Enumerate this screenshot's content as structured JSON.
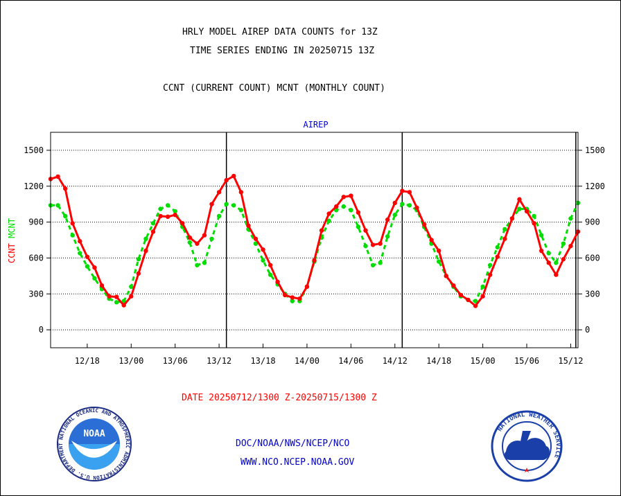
{
  "header": {
    "title_line1": "HRLY MODEL AIREP DATA COUNTS for 13Z",
    "title_line2": "TIME SERIES ENDING IN 20250715 13Z",
    "subtitle": "CCNT (CURRENT COUNT) MCNT (MONTHLY COUNT)"
  },
  "footer": {
    "date_range": "DATE 20250712/1300 Z-20250715/1300 Z",
    "links": [
      "DOC/NOAA/NWS/NCEP/NCO",
      "WWW.NCO.NCEP.NOAA.GOV"
    ]
  },
  "logos": {
    "left": {
      "icon": "noaa-logo-icon",
      "text": "NOAA",
      "ring_text": "NATIONAL OCEANIC AND ATMOSPHERIC ADMINISTRATION  U.S. DEPARTMENT OF COMMERCE"
    },
    "right": {
      "icon": "nws-logo-icon",
      "ring_text": "NATIONAL WEATHER SERVICE"
    }
  },
  "colors": {
    "ccnt": "#ff0000",
    "mcnt": "#00dd00",
    "axis": "#000000",
    "panel_label": "#0000cc",
    "date_range": "#ff0000",
    "links": "#0000cc"
  },
  "chart_data": {
    "type": "line",
    "title": "AIREP",
    "ylabel": "CCNT  MCNT",
    "ylabel_parts": [
      {
        "text": "CCNT",
        "color": "#ff0000"
      },
      {
        "text": "MCNT",
        "color": "#00dd00"
      }
    ],
    "x_unit": "hours from 20250712 13Z",
    "xlim": [
      0,
      72
    ],
    "ylim": [
      -150,
      1650
    ],
    "yticks": [
      0,
      300,
      600,
      900,
      1200,
      1500
    ],
    "xticks": [
      {
        "label": "12/18",
        "x": 5
      },
      {
        "label": "13/00",
        "x": 11
      },
      {
        "label": "13/06",
        "x": 17
      },
      {
        "label": "13/12",
        "x": 23
      },
      {
        "label": "13/18",
        "x": 29
      },
      {
        "label": "14/00",
        "x": 35
      },
      {
        "label": "14/06",
        "x": 41
      },
      {
        "label": "14/12",
        "x": 47
      },
      {
        "label": "14/18",
        "x": 53
      },
      {
        "label": "15/00",
        "x": 59
      },
      {
        "label": "15/06",
        "x": 65
      },
      {
        "label": "15/12",
        "x": 71
      }
    ],
    "day_markers": [
      24,
      48,
      71.7
    ],
    "grid": "horizontal dotted",
    "series": [
      {
        "name": "CCNT",
        "color": "#ff0000",
        "x": [
          0,
          1,
          2,
          3,
          4,
          5,
          6,
          7,
          8,
          9,
          10,
          11,
          12,
          13,
          14,
          15,
          16,
          17,
          18,
          19,
          20,
          21,
          22,
          23,
          24,
          25,
          26,
          27,
          28,
          29,
          30,
          31,
          32,
          33,
          34,
          35,
          36,
          37,
          38,
          39,
          40,
          41,
          42,
          43,
          44,
          45,
          46,
          47,
          48,
          49,
          50,
          51,
          52,
          53,
          54,
          55,
          56,
          57,
          58,
          59,
          60,
          61,
          62,
          63,
          64,
          65,
          66,
          67,
          68,
          69,
          70,
          71,
          72
        ],
        "values": [
          1260,
          1280,
          1180,
          890,
          740,
          610,
          520,
          370,
          280,
          275,
          205,
          280,
          470,
          660,
          820,
          950,
          945,
          960,
          890,
          770,
          720,
          790,
          1050,
          1150,
          1250,
          1285,
          1150,
          870,
          760,
          670,
          540,
          400,
          290,
          270,
          260,
          360,
          580,
          830,
          970,
          1030,
          1110,
          1120,
          980,
          830,
          710,
          720,
          920,
          1060,
          1160,
          1150,
          1020,
          880,
          750,
          660,
          450,
          370,
          290,
          250,
          200,
          280,
          460,
          610,
          760,
          930,
          1090,
          990,
          890,
          660,
          560,
          460,
          590,
          700,
          820
        ]
      },
      {
        "name": "MCNT",
        "color": "#00dd00",
        "x": [
          0,
          1,
          2,
          3,
          4,
          5,
          6,
          7,
          8,
          9,
          10,
          11,
          12,
          13,
          14,
          15,
          16,
          17,
          18,
          19,
          20,
          21,
          22,
          23,
          24,
          25,
          26,
          27,
          28,
          29,
          30,
          31,
          32,
          33,
          34,
          35,
          36,
          37,
          38,
          39,
          40,
          41,
          42,
          43,
          44,
          45,
          46,
          47,
          48,
          49,
          50,
          51,
          52,
          53,
          54,
          55,
          56,
          57,
          58,
          59,
          60,
          61,
          62,
          63,
          64,
          65,
          66,
          67,
          68,
          69,
          70,
          71,
          72
        ],
        "values": [
          1040,
          1040,
          950,
          790,
          640,
          530,
          430,
          340,
          260,
          230,
          240,
          360,
          590,
          760,
          890,
          1010,
          1040,
          990,
          860,
          730,
          540,
          560,
          760,
          950,
          1050,
          1040,
          1000,
          840,
          720,
          580,
          460,
          380,
          300,
          240,
          240,
          360,
          570,
          770,
          910,
          1000,
          1030,
          1000,
          860,
          700,
          540,
          560,
          780,
          960,
          1050,
          1040,
          1000,
          860,
          720,
          570,
          450,
          360,
          280,
          250,
          240,
          360,
          540,
          690,
          840,
          930,
          1010,
          1010,
          950,
          790,
          640,
          560,
          720,
          930,
          1060
        ]
      }
    ]
  }
}
